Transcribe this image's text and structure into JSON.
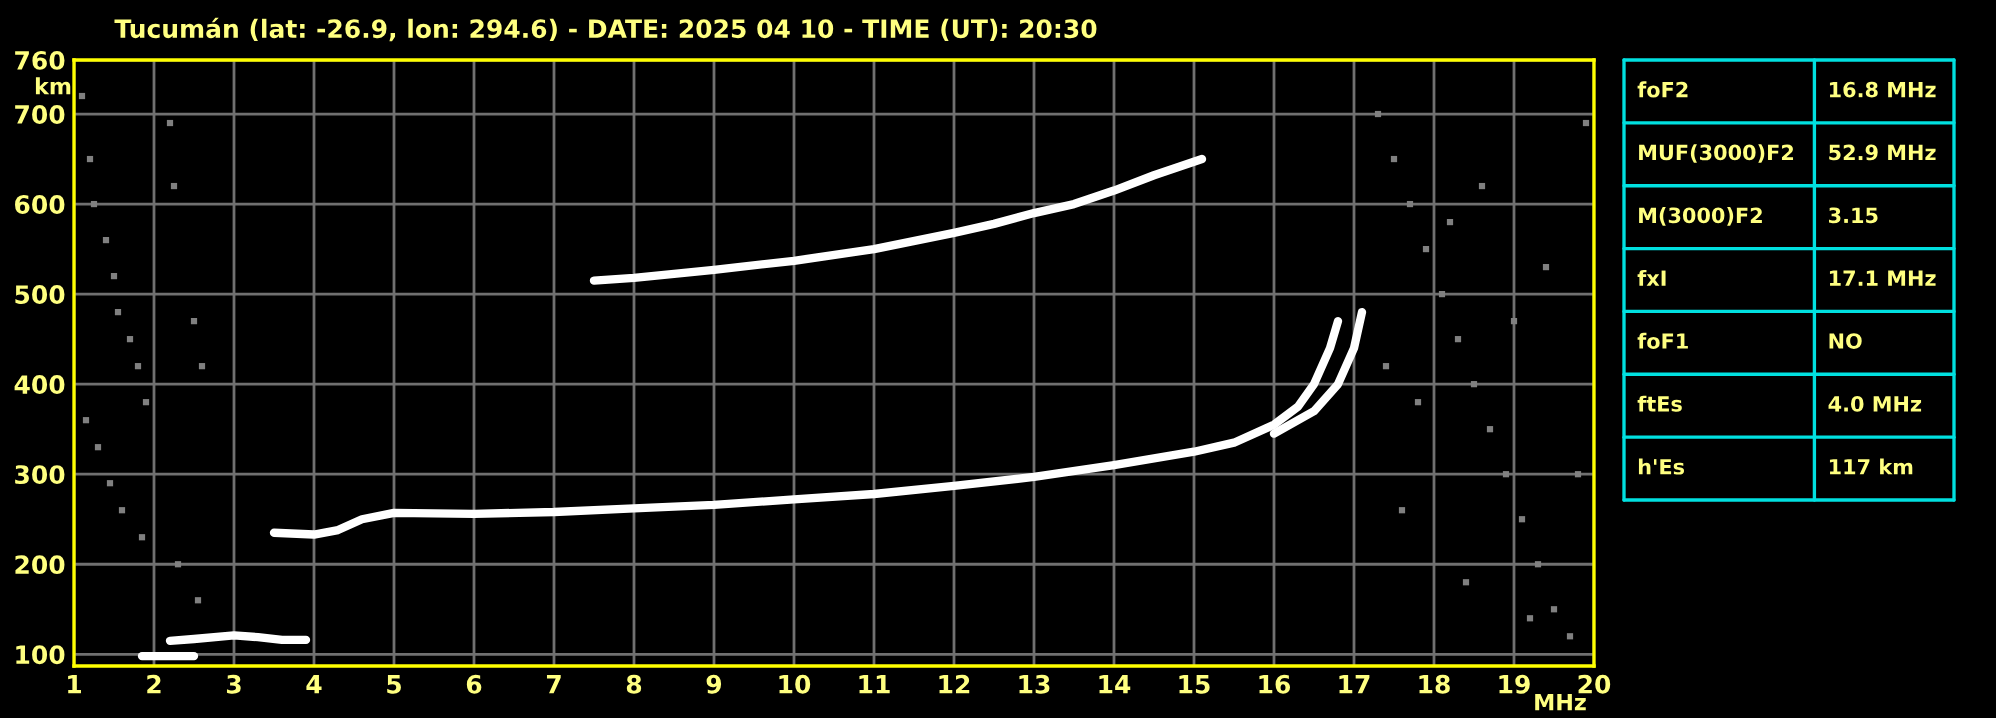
{
  "chart_data": {
    "type": "line",
    "title": "Tucumán (lat: -26.9, lon: 294.6) - DATE: 2025 04 10 - TIME (UT): 20:30",
    "xlabel": "MHz",
    "ylabel": "km",
    "xlim": [
      1,
      20
    ],
    "ylim": [
      87,
      760
    ],
    "xticks": [
      1,
      2,
      3,
      4,
      5,
      6,
      7,
      8,
      9,
      10,
      11,
      12,
      13,
      14,
      15,
      16,
      17,
      18,
      19,
      20
    ],
    "yticks": [
      100,
      200,
      300,
      400,
      500,
      600,
      700,
      760
    ],
    "grid": true,
    "marker": "none",
    "line_style": "solid",
    "series": [
      {
        "color": "#ffffff",
        "x": [
          1.85,
          2.5
        ],
        "values": [
          98,
          98
        ]
      },
      {
        "color": "#ffffff",
        "x": [
          2.2,
          2.5,
          3.0,
          3.3,
          3.6,
          3.9
        ],
        "values": [
          115,
          117,
          121,
          119,
          116,
          116
        ]
      },
      {
        "color": "#ffffff",
        "x": [
          3.5,
          4.0,
          4.3,
          4.6,
          5,
          6,
          7,
          8,
          9,
          10,
          11,
          12,
          13,
          14,
          15,
          15.5,
          16,
          16.3,
          16.5,
          16.7,
          16.8
        ],
        "values": [
          235,
          233,
          238,
          250,
          257,
          256,
          258,
          262,
          266,
          272,
          278,
          287,
          297,
          310,
          325,
          335,
          355,
          375,
          400,
          440,
          470
        ]
      },
      {
        "color": "#ffffff",
        "x": [
          16.0,
          16.5,
          16.8,
          17.0,
          17.1
        ],
        "values": [
          345,
          370,
          400,
          440,
          480
        ]
      },
      {
        "color": "#ffffff",
        "x": [
          7.5,
          8,
          9,
          10,
          11,
          12,
          12.5,
          13,
          13.5,
          14,
          14.5,
          15.1
        ],
        "values": [
          515,
          518,
          527,
          537,
          550,
          568,
          578,
          590,
          600,
          615,
          632,
          650
        ]
      },
      {
        "type": "scatter",
        "marker": "square",
        "color": "#808080",
        "x": [
          1.1,
          1.2,
          1.25,
          1.4,
          1.5,
          1.55,
          1.7,
          1.8,
          1.9,
          2.2,
          2.25,
          2.5,
          2.6,
          1.15,
          1.3,
          1.45,
          1.6,
          1.85,
          2.3,
          2.55,
          17.3,
          17.5,
          17.7,
          17.9,
          18.1,
          18.3,
          18.5,
          18.7,
          18.9,
          19.1,
          19.3,
          19.5,
          19.7,
          19.9,
          17.4,
          17.8,
          18.2,
          18.6,
          19.0,
          19.4,
          19.8,
          17.6,
          18.4,
          19.2
        ],
        "values": [
          720,
          650,
          600,
          560,
          520,
          480,
          450,
          420,
          380,
          690,
          620,
          470,
          420,
          360,
          330,
          290,
          260,
          230,
          200,
          160,
          700,
          650,
          600,
          550,
          500,
          450,
          400,
          350,
          300,
          250,
          200,
          150,
          120,
          690,
          420,
          380,
          580,
          620,
          470,
          530,
          300,
          260,
          180,
          140
        ]
      }
    ],
    "annotations": [
      "foF2",
      "16.8 MHz",
      "MUF(3000)F2",
      "52.9 MHz",
      "M(3000)F2",
      "3.15",
      "fxI",
      "17.1 MHz",
      "foF1",
      "NO",
      "ftEs",
      "4.0 MHz",
      "h'Es",
      "117 km"
    ]
  }
}
